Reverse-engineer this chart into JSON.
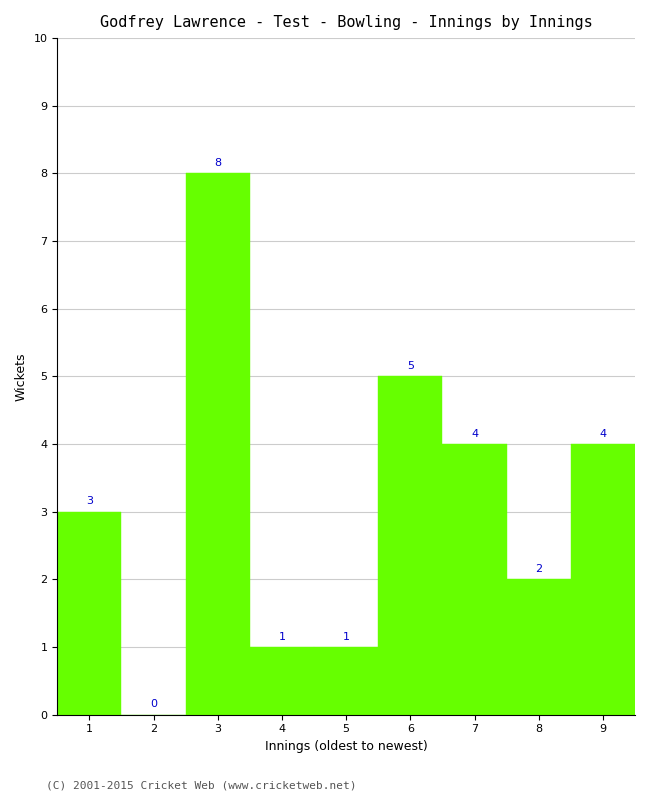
{
  "title": "Godfrey Lawrence - Test - Bowling - Innings by Innings",
  "xlabel": "Innings (oldest to newest)",
  "ylabel": "Wickets",
  "categories": [
    "1",
    "2",
    "3",
    "4",
    "5",
    "6",
    "7",
    "8",
    "9"
  ],
  "values": [
    3,
    0,
    8,
    1,
    1,
    5,
    4,
    2,
    4
  ],
  "bar_color": "#66ff00",
  "bar_edge_color": "#66ff00",
  "label_color": "#0000cc",
  "label_fontsize": 8,
  "title_fontsize": 11,
  "axis_label_fontsize": 9,
  "tick_fontsize": 8,
  "ylim": [
    0,
    10
  ],
  "yticks": [
    0,
    1,
    2,
    3,
    4,
    5,
    6,
    7,
    8,
    9,
    10
  ],
  "grid_color": "#cccccc",
  "background_color": "#ffffff",
  "footer_text": "(C) 2001-2015 Cricket Web (www.cricketweb.net)",
  "footer_fontsize": 8,
  "footer_color": "#555555"
}
